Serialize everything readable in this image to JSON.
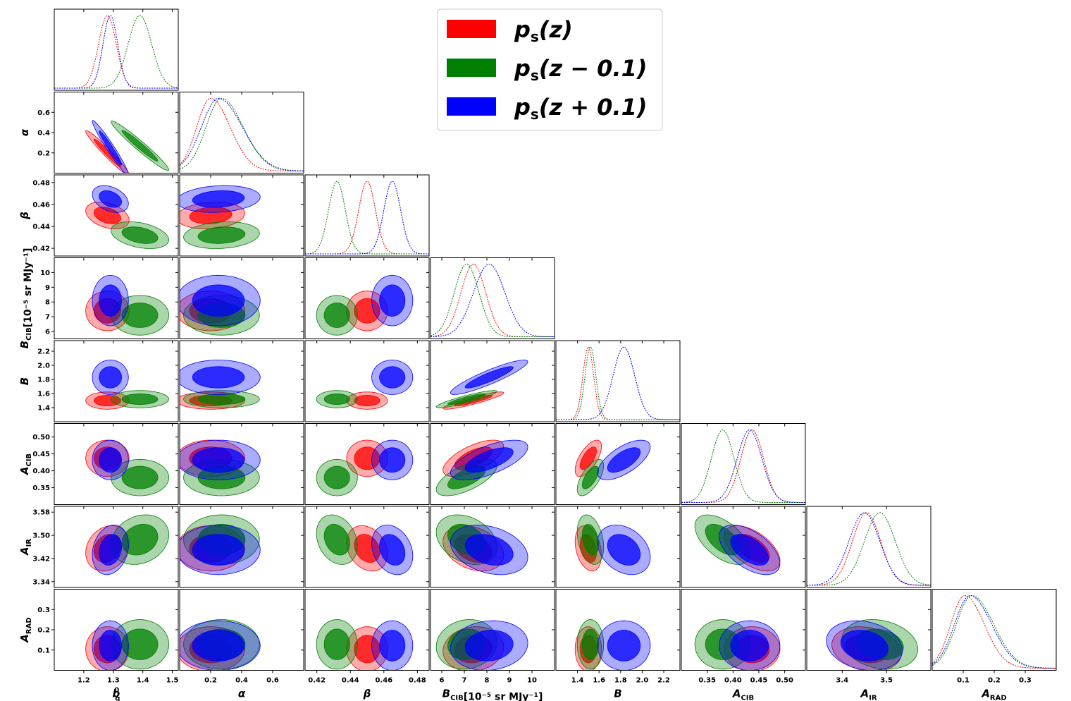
{
  "chart_data": {
    "type": "corner",
    "title": "",
    "parameters": [
      {
        "id": "bg",
        "label_main": "b",
        "label_sub": "g",
        "label_sup": "0",
        "range": [
          1.1,
          1.52
        ],
        "ticks": [
          1.2,
          1.3,
          1.4,
          1.5
        ],
        "tick_labels": [
          "1.2",
          "1.3",
          "1.4",
          "1.5"
        ]
      },
      {
        "id": "alpha",
        "label_main": "α",
        "label_sub": "",
        "label_sup": "",
        "range": [
          0.0,
          0.8
        ],
        "ticks": [
          0.2,
          0.4,
          0.6
        ],
        "tick_labels": [
          "0.2",
          "0.4",
          "0.6"
        ]
      },
      {
        "id": "beta",
        "label_main": "β",
        "label_sub": "",
        "label_sup": "",
        "range": [
          0.413,
          0.487
        ],
        "ticks": [
          0.42,
          0.44,
          0.46,
          0.48
        ],
        "tick_labels": [
          "0.42",
          "0.44",
          "0.46",
          "0.48"
        ]
      },
      {
        "id": "BCIB",
        "label_main": "B",
        "label_sub": "CIB",
        "label_sup": "",
        "label_unit": "[10⁻⁵ sr MJy⁻¹]",
        "range": [
          5.5,
          11.0
        ],
        "ticks": [
          6,
          7,
          8,
          9,
          10
        ],
        "tick_labels": [
          "6",
          "7",
          "8",
          "9",
          "10"
        ]
      },
      {
        "id": "B",
        "label_main": "B",
        "label_sub": "",
        "label_sup": "",
        "range": [
          1.2,
          2.35
        ],
        "ticks": [
          1.4,
          1.6,
          1.8,
          2.0,
          2.2
        ],
        "tick_labels": [
          "1.4",
          "1.6",
          "1.8",
          "2.0",
          "2.2"
        ]
      },
      {
        "id": "ACIB",
        "label_main": "A",
        "label_sub": "CIB",
        "label_sup": "",
        "range": [
          0.3,
          0.54
        ],
        "ticks": [
          0.35,
          0.4,
          0.45,
          0.5
        ],
        "tick_labels": [
          "0.35",
          "0.40",
          "0.45",
          "0.50"
        ]
      },
      {
        "id": "AIR",
        "label_main": "A",
        "label_sub": "IR",
        "label_sup": "",
        "range": [
          3.32,
          3.6
        ],
        "ticks": [
          3.34,
          3.42,
          3.5,
          3.58
        ],
        "x_ticks": [
          3.4,
          3.5
        ],
        "x_tick_labels": [
          "3.4",
          "3.5"
        ],
        "tick_labels": [
          "3.34",
          "3.42",
          "3.50",
          "3.58"
        ]
      },
      {
        "id": "ARAD",
        "label_main": "A",
        "label_sub": "RAD",
        "label_sup": "",
        "range": [
          0.0,
          0.4
        ],
        "ticks": [
          0.1,
          0.2,
          0.3
        ],
        "tick_labels": [
          "0.1",
          "0.2",
          "0.3"
        ]
      }
    ],
    "series": [
      {
        "name": "ps(z)",
        "legend_main": "p",
        "legend_sub": "s",
        "legend_arg": "(z)",
        "color": "#ff0000",
        "mean": [
          1.28,
          0.2,
          0.45,
          7.4,
          1.5,
          0.437,
          3.455,
          0.105
        ],
        "sigma": [
          0.03,
          0.09,
          0.005,
          0.55,
          0.05,
          0.022,
          0.032,
          0.045
        ]
      },
      {
        "name": "ps(z-0.1)",
        "legend_main": "p",
        "legend_sub": "s",
        "legend_arg": "(z − 0.1)",
        "color": "#008000",
        "mean": [
          1.39,
          0.27,
          0.432,
          7.1,
          1.52,
          0.38,
          3.485,
          0.128
        ],
        "sigma": [
          0.04,
          0.1,
          0.005,
          0.55,
          0.05,
          0.022,
          0.035,
          0.05
        ]
      },
      {
        "name": "ps(z+0.1)",
        "legend_main": "p",
        "legend_sub": "s",
        "legend_arg": "(z + 0.1)",
        "color": "#0000ff",
        "mean": [
          1.29,
          0.25,
          0.465,
          8.1,
          1.83,
          0.432,
          3.45,
          0.122
        ],
        "sigma": [
          0.025,
          0.11,
          0.005,
          0.7,
          0.1,
          0.024,
          0.035,
          0.05
        ]
      }
    ],
    "correlations": {
      "bg|alpha": -0.97,
      "bg|beta": -0.35,
      "alpha|beta": 0.15,
      "BCIB|B": 0.9,
      "BCIB|ACIB": 0.65,
      "B|ACIB": 0.65,
      "ACIB|AIR": -0.55,
      "bg|AIR": 0.2,
      "beta|AIR": -0.25,
      "BCIB|AIR": -0.3,
      "B|AIR": -0.3,
      "ARAD|AIR": -0.2,
      "ARAD|BCIB": 0.1
    },
    "legend_position": "top-right"
  }
}
